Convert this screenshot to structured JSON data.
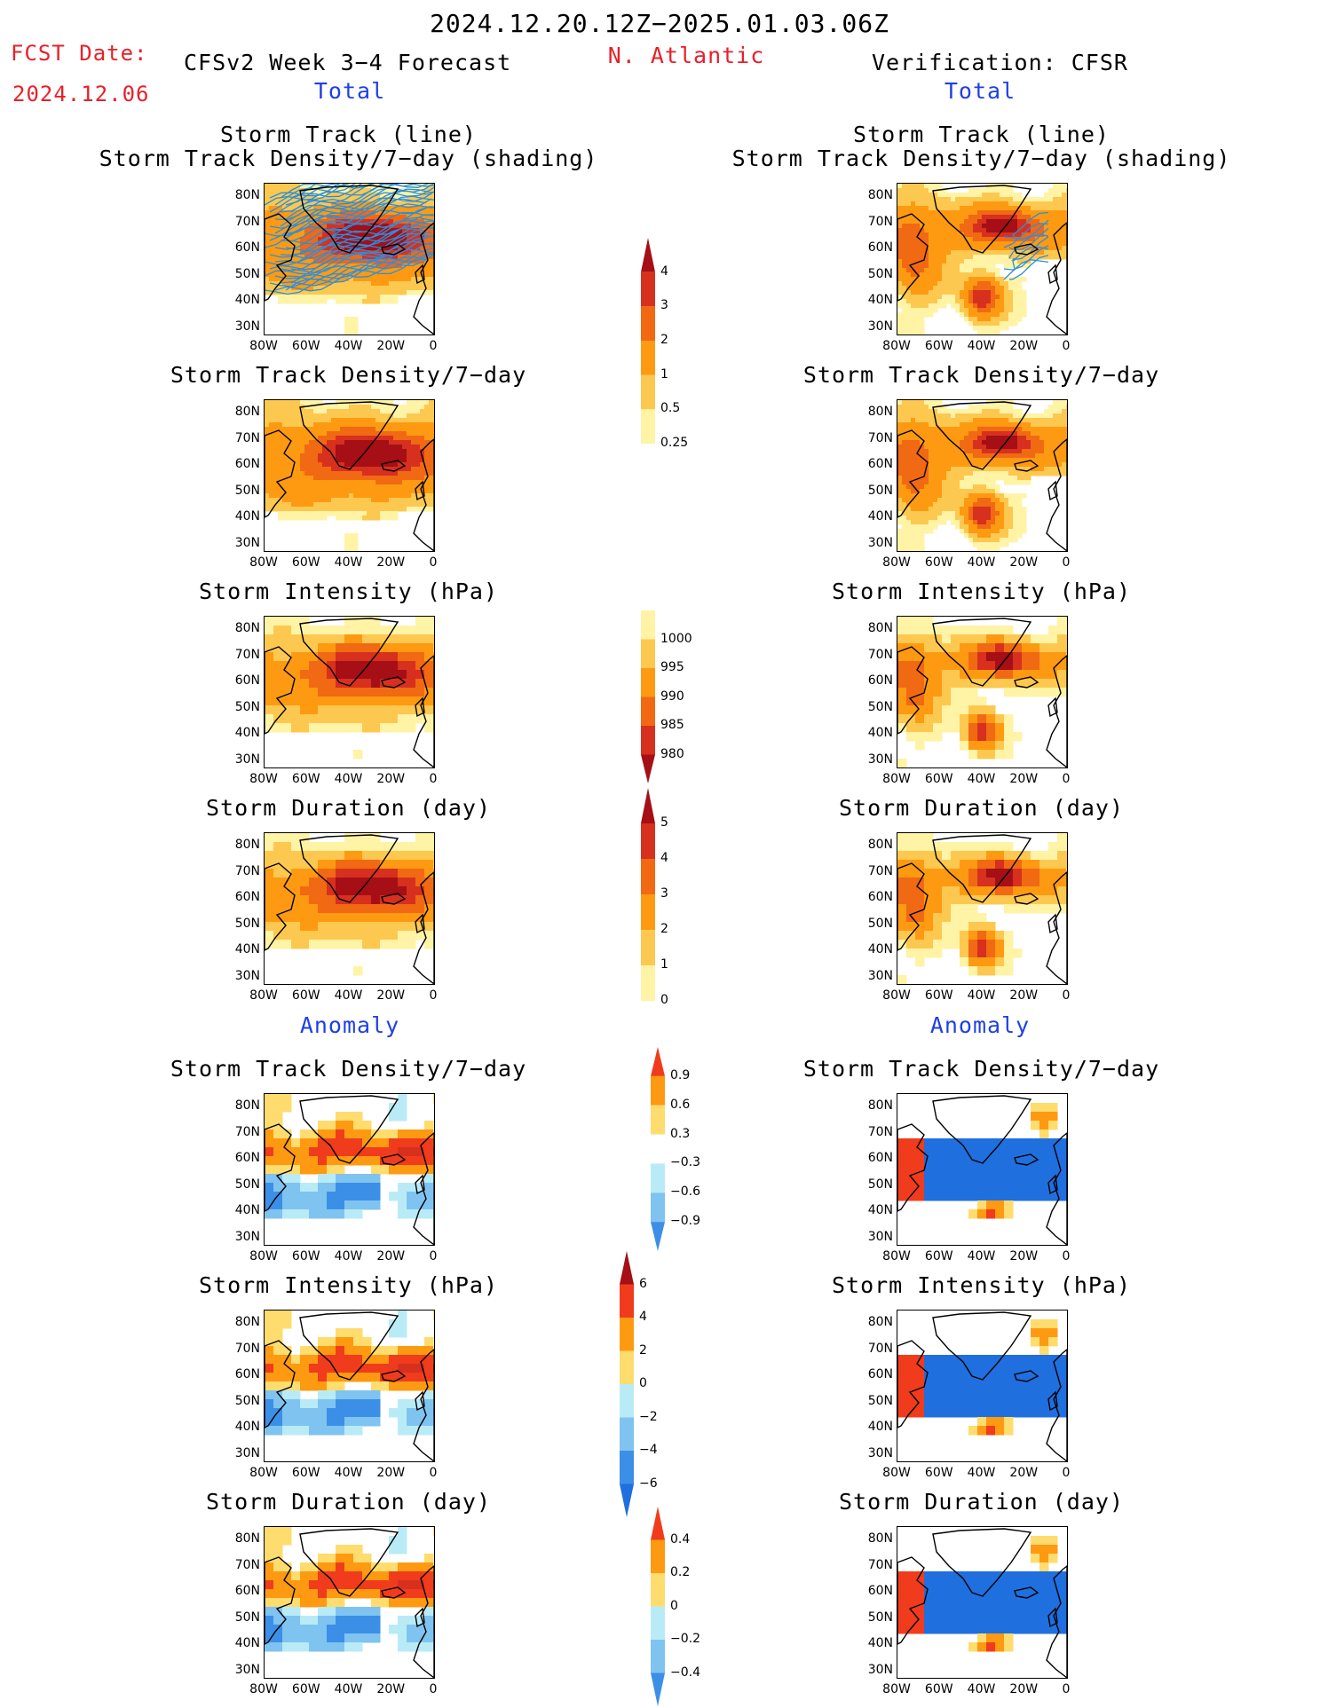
{
  "header": {
    "period": "2024.12.20.12Z−2025.01.03.06Z",
    "region": "N. Atlantic",
    "fcst_date_label": "FCST Date:",
    "fcst_date_value": "2024.12.06",
    "left_model": "CFSv2 Week 3−4 Forecast",
    "right_model": "Verification: CFSR",
    "left_section_total": "Total",
    "right_section_total": "Total",
    "left_section_anomaly": "Anomaly",
    "right_section_anomaly": "Anomaly"
  },
  "axes": {
    "lat_labels": [
      "80N",
      "70N",
      "60N",
      "50N",
      "40N",
      "30N"
    ],
    "lon_labels": [
      "80W",
      "60W",
      "40W",
      "20W",
      "0"
    ]
  },
  "panels": {
    "left": [
      {
        "title1": "Storm Track (line)",
        "title2": "Storm Track Density/7−day (shading)",
        "kind": "track",
        "style": "forecast"
      },
      {
        "title1": "Storm Track Density/7−day",
        "title2": "",
        "kind": "density",
        "style": "forecast"
      },
      {
        "title1": "Storm Intensity (hPa)",
        "title2": "",
        "kind": "intensity",
        "style": "forecast"
      },
      {
        "title1": "Storm Duration (day)",
        "title2": "",
        "kind": "duration",
        "style": "forecast"
      },
      {
        "title1": "Storm Track Density/7−day",
        "title2": "",
        "kind": "anom_density",
        "style": "forecast"
      },
      {
        "title1": "Storm Intensity (hPa)",
        "title2": "",
        "kind": "anom_intensity",
        "style": "forecast"
      },
      {
        "title1": "Storm Duration (day)",
        "title2": "",
        "kind": "anom_duration",
        "style": "forecast"
      }
    ],
    "right": [
      {
        "title1": "Storm Track (line)",
        "title2": "Storm Track Density/7−day (shading)",
        "kind": "track",
        "style": "verif"
      },
      {
        "title1": "Storm Track Density/7−day",
        "title2": "",
        "kind": "density",
        "style": "verif"
      },
      {
        "title1": "Storm Intensity (hPa)",
        "title2": "",
        "kind": "intensity",
        "style": "verif"
      },
      {
        "title1": "Storm Duration (day)",
        "title2": "",
        "kind": "duration",
        "style": "verif"
      },
      {
        "title1": "Storm Track Density/7−day",
        "title2": "",
        "kind": "anom_density",
        "style": "verif"
      },
      {
        "title1": "Storm Intensity (hPa)",
        "title2": "",
        "kind": "anom_intensity",
        "style": "verif"
      },
      {
        "title1": "Storm Duration (day)",
        "title2": "",
        "kind": "anom_duration",
        "style": "verif"
      }
    ]
  },
  "colorbars": [
    {
      "name": "density",
      "labels": [
        "4",
        "3",
        "2",
        "1",
        "0.5",
        "0.25"
      ],
      "colors": [
        "#a50f15",
        "#d7301f",
        "#f16913",
        "#fd9a12",
        "#fdc84f",
        "#fff3a6"
      ]
    },
    {
      "name": "intensity",
      "labels": [
        "1000",
        "995",
        "990",
        "985",
        "980"
      ],
      "colors": [
        "#fff3a6",
        "#fdc84f",
        "#fd9a12",
        "#f16913",
        "#d7301f",
        "#a50f15"
      ]
    },
    {
      "name": "duration",
      "labels": [
        "5",
        "4",
        "3",
        "2",
        "1",
        "0"
      ],
      "colors": [
        "#a50f15",
        "#d7301f",
        "#f16913",
        "#fd9a12",
        "#fdc84f",
        "#fff3a6"
      ]
    },
    {
      "name": "anom_density",
      "labels": [
        "0.9",
        "0.6",
        "0.3",
        "−0.3",
        "−0.6",
        "−0.9"
      ],
      "colors": [
        "#f03c1c",
        "#fd9a12",
        "#fedc6e",
        "#ffffff",
        "#b9ebf7",
        "#7fc3f0",
        "#3c8fe6"
      ]
    },
    {
      "name": "anom_intensity",
      "labels": [
        "6",
        "4",
        "2",
        "0",
        "−2",
        "−4",
        "−6"
      ],
      "colors": [
        "#a50f15",
        "#f03c1c",
        "#fd9a12",
        "#fedc6e",
        "#b9ebf7",
        "#7fc3f0",
        "#3c8fe6",
        "#1f6fdf"
      ]
    },
    {
      "name": "anom_duration",
      "labels": [
        "0.4",
        "0.2",
        "0",
        "−0.2",
        "−0.4"
      ],
      "colors": [
        "#f03c1c",
        "#fd9a12",
        "#fedc6e",
        "#b9ebf7",
        "#7fc3f0",
        "#3c8fe6"
      ]
    }
  ],
  "colors": {
    "title_red": "#e8202a",
    "title_blue": "#1f3fe6",
    "track_line": "#2a8fe0"
  }
}
